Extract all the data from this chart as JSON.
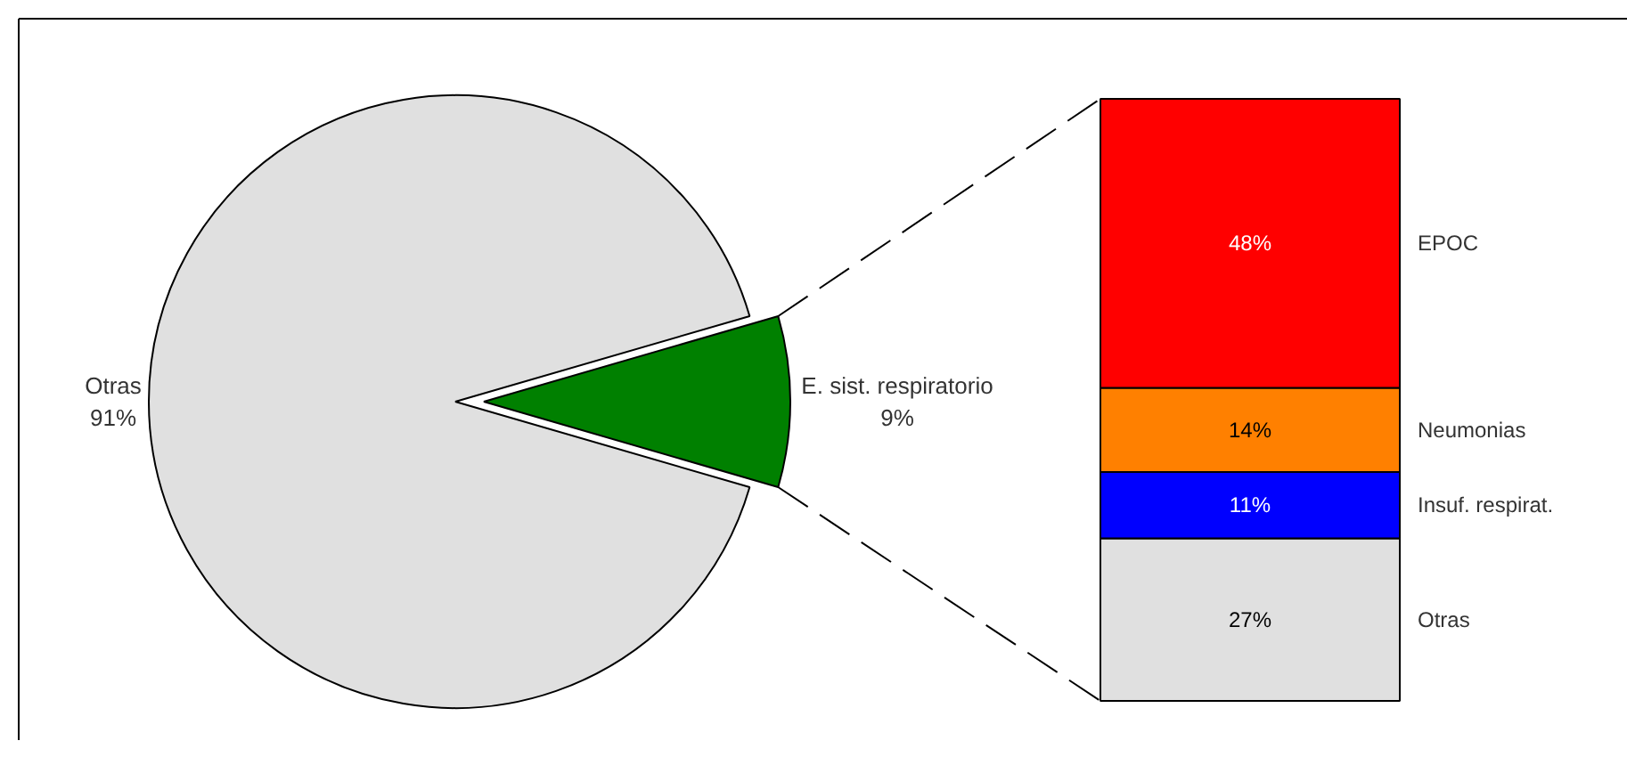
{
  "chart_data": [
    {
      "type": "pie",
      "categories": [
        "Otras",
        "E. sist. respiratorio"
      ],
      "values": [
        91,
        9
      ],
      "colors": [
        "#e0e0e0",
        "#008000"
      ],
      "value_labels": [
        "91%",
        "9%"
      ]
    },
    {
      "type": "bar",
      "stacked": true,
      "categories": [
        null
      ],
      "series": [
        {
          "name": "Otras",
          "color": "#e0e0e0",
          "values": [
            27
          ],
          "value_labels": [
            "27%"
          ]
        },
        {
          "name": "Insuf. respirat.",
          "color": "#0000ff",
          "values": [
            11
          ],
          "value_labels": [
            "11%"
          ]
        },
        {
          "name": "Neumonias",
          "color": "#ff8000",
          "values": [
            14
          ],
          "value_labels": [
            "14%"
          ]
        },
        {
          "name": "EPOC",
          "color": "#ff0000",
          "values": [
            48
          ],
          "value_labels": [
            "48%"
          ]
        }
      ]
    }
  ]
}
